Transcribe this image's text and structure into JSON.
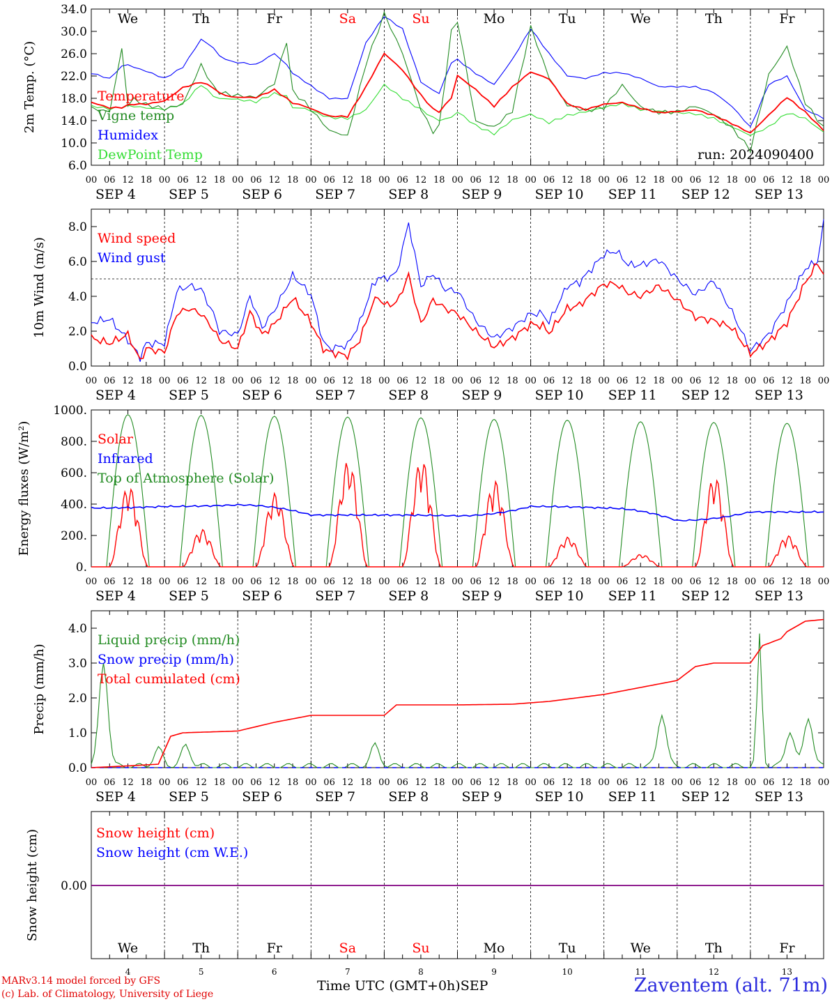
{
  "colors": {
    "red": "#ff0000",
    "green": "#228b22",
    "blue": "#0000ff",
    "lime": "#33dd33",
    "purple": "#800080",
    "black": "#000000"
  },
  "days": [
    "We",
    "Th",
    "Fr",
    "Sa",
    "Su",
    "Mo",
    "Tu",
    "We",
    "Th",
    "Fr"
  ],
  "weekend_idx": [
    3,
    4
  ],
  "dates": [
    "SEP  4",
    "SEP  5",
    "SEP  6",
    "SEP  7",
    "SEP  8",
    "SEP  9",
    "SEP 10",
    "SEP 11",
    "SEP 12",
    "SEP 13"
  ],
  "hour_ticks": [
    "00",
    "06",
    "12",
    "18"
  ],
  "bottom_day_numbers": [
    "4",
    "5",
    "6",
    "7",
    "8",
    "9",
    "10",
    "11",
    "12",
    "13"
  ],
  "footer": {
    "model": "MARv3.14 model forced by GFS",
    "credit": "(c) Lab. of Climatology, University of Liege",
    "axis_label": "Time UTC (GMT+0h)",
    "month": "SEP",
    "station": "Zaventem (alt. 71m)"
  },
  "chart_data": [
    {
      "type": "line",
      "ylabel": "2m Temp. (°C)",
      "ylim": [
        6,
        34
      ],
      "yticks": [
        "6.0",
        "10.0",
        "14.0",
        "18.0",
        "22.0",
        "26.0",
        "30.0",
        "34.0"
      ],
      "run_label": "run: 2024090400",
      "x_hours": [
        0,
        6,
        10,
        12,
        14,
        18,
        24,
        30,
        36,
        40,
        42,
        46,
        54,
        60,
        64,
        66,
        70,
        78,
        84,
        90,
        96,
        102,
        108,
        112,
        114,
        118,
        120,
        126,
        132,
        138,
        144,
        150,
        156,
        162,
        168,
        174,
        180,
        186,
        192,
        198,
        204,
        210,
        216,
        222,
        228,
        234,
        240
      ],
      "series": [
        {
          "name": "Temperature",
          "color": "red",
          "values": [
            17.3,
            16.3,
            16.4,
            16.8,
            17,
            17,
            17.6,
            20,
            21,
            20,
            19,
            18.3,
            18.2,
            19.6,
            18,
            17.2,
            16.6,
            14.8,
            14.7,
            20,
            26,
            23,
            18.5,
            16,
            15.5,
            18,
            22,
            19.5,
            16.5,
            20,
            22.7,
            21.5,
            17,
            16,
            17,
            17.3,
            16.3,
            15.5,
            15.7,
            16,
            15,
            13.5,
            11.8,
            15,
            18.2,
            15.5,
            12.2
          ]
        },
        {
          "name": "Vigne temp",
          "color": "green",
          "values": [
            16.5,
            15.8,
            27,
            17,
            18,
            17,
            16.2,
            17,
            24,
            20,
            19,
            18.5,
            18,
            20.5,
            28,
            19,
            17,
            12,
            11,
            24,
            33,
            26,
            16,
            12,
            13,
            30,
            32,
            14,
            13,
            16,
            31,
            22,
            17,
            16,
            16.5,
            20.5,
            16.5,
            15.5,
            15.5,
            16.5,
            15,
            12.5,
            8.5,
            22,
            27,
            17,
            12.5
          ]
        },
        {
          "name": "Humidex",
          "color": "blue",
          "values": [
            22.5,
            21.5,
            23.7,
            24,
            23.5,
            22.8,
            21.5,
            23.5,
            28.5,
            27,
            25.5,
            24.5,
            24,
            26,
            24,
            22.5,
            21,
            18,
            18,
            28,
            32.8,
            30.5,
            21,
            19.5,
            19,
            24.5,
            25,
            22.5,
            20.5,
            25,
            30.5,
            26,
            22,
            21.5,
            22.5,
            22.5,
            21.5,
            20,
            20,
            20,
            19,
            16.5,
            12.8,
            20.5,
            22,
            16,
            14.5
          ]
        },
        {
          "name": "DewPoint Temp",
          "color": "lime",
          "values": [
            16.5,
            16,
            16.3,
            16.5,
            16.5,
            16.2,
            16,
            17,
            20.5,
            18.5,
            18,
            18,
            17.5,
            19,
            18.5,
            16.5,
            16.3,
            14.7,
            14.5,
            16,
            20.5,
            18,
            16,
            14.5,
            14,
            14.5,
            15.5,
            13,
            11.5,
            14,
            15,
            13.5,
            14.8,
            15.5,
            16.3,
            17,
            16,
            15.7,
            15.5,
            15.3,
            14.5,
            13,
            11.5,
            13,
            15.5,
            14.5,
            12
          ]
        }
      ]
    },
    {
      "type": "line",
      "ylabel": "10m Wind (m/s)",
      "ylim": [
        0,
        9
      ],
      "yticks": [
        "0.0",
        "2.0",
        "4.0",
        "6.0",
        "8.0"
      ],
      "reference_line": 5,
      "x_hours": [
        0,
        6,
        12,
        16,
        18,
        24,
        28,
        32,
        36,
        40,
        42,
        48,
        52,
        56,
        60,
        66,
        72,
        76,
        78,
        84,
        88,
        92,
        94,
        96,
        100,
        104,
        108,
        112,
        116,
        120,
        126,
        132,
        138,
        144,
        148,
        150,
        156,
        160,
        168,
        172,
        176,
        180,
        184,
        186,
        192,
        198,
        204,
        210,
        216,
        222,
        228,
        234,
        238,
        240
      ],
      "series": [
        {
          "name": "Wind speed",
          "color": "red",
          "values": [
            1.6,
            1.3,
            1.8,
            0.3,
            1,
            0.8,
            3,
            3.3,
            3,
            2.1,
            1.5,
            1,
            3.1,
            1.8,
            2.4,
            3.9,
            2.5,
            1,
            0.8,
            0.6,
            1.5,
            3.5,
            4,
            3.5,
            3.6,
            5.2,
            2.4,
            3.8,
            3.3,
            3,
            2,
            1.1,
            1.6,
            2.4,
            2.3,
            1.9,
            3.3,
            3.5,
            4.7,
            4.7,
            4.2,
            4,
            4.4,
            4.6,
            3.8,
            2.8,
            2.6,
            2.2,
            0.7,
            1.4,
            2.5,
            4.8,
            5.9,
            5.3
          ]
        },
        {
          "name": "Wind gust",
          "color": "blue",
          "values": [
            2.5,
            2.7,
            1.5,
            0.5,
            1.3,
            1.3,
            4.3,
            4.6,
            4.4,
            3,
            2,
            1.8,
            4,
            2.2,
            3.2,
            5.2,
            4.1,
            1.4,
            1,
            1.2,
            2.5,
            4.5,
            5.1,
            5,
            5.3,
            8.2,
            4.6,
            5.3,
            4.4,
            4.3,
            2.6,
            1.6,
            2.2,
            3,
            3,
            2.5,
            4.6,
            4.8,
            6.4,
            6.6,
            5.8,
            5.8,
            6,
            6.1,
            5,
            4.1,
            4.9,
            3.1,
            0.9,
            1.8,
            3.6,
            5.6,
            6,
            8.2
          ]
        }
      ]
    },
    {
      "type": "line",
      "ylabel": "Energy fluxes (W/m²)",
      "ylim": [
        0,
        1000
      ],
      "yticks": [
        "0.",
        "200.",
        "400.",
        "600.",
        "800.",
        "1000."
      ],
      "series": [
        {
          "name": "Solar",
          "color": "red",
          "daily_peaks": [
            520,
            240,
            470,
            680,
            690,
            550,
            190,
            80,
            580,
            200
          ]
        },
        {
          "name": "Infrared",
          "color": "blue",
          "values_daily": [
            375,
            385,
            395,
            330,
            330,
            325,
            385,
            375,
            295,
            350
          ]
        },
        {
          "name": "Top of Atmosphere (Solar)",
          "color": "green",
          "daily_peaks": [
            970,
            965,
            960,
            955,
            950,
            940,
            935,
            925,
            920,
            915
          ]
        }
      ]
    },
    {
      "type": "line",
      "ylabel": "Precip (mm/h)",
      "ylim": [
        0,
        4.5
      ],
      "yticks": [
        "0.0",
        "1.0",
        "2.0",
        "3.0",
        "4.0"
      ],
      "x_hours": [
        0,
        12,
        22,
        26,
        30,
        48,
        60,
        72,
        84,
        96,
        100,
        108,
        120,
        138,
        150,
        168,
        180,
        192,
        198,
        204,
        210,
        216,
        220,
        226,
        228,
        234,
        240
      ],
      "series": [
        {
          "name": "Liquid precip (mm/h)",
          "color": "green",
          "peaks": [
            [
              4,
              3
            ],
            [
              22,
              0.5
            ],
            [
              31,
              0.6
            ],
            [
              93,
              0.6
            ],
            [
              187,
              1.5
            ],
            [
              219,
              3.75
            ],
            [
              229,
              1
            ],
            [
              235,
              1.4
            ]
          ]
        },
        {
          "name": "Snow precip (mm/h)",
          "color": "blue",
          "values": [
            0
          ]
        },
        {
          "name": "Total cumulated (cm)",
          "color": "red",
          "values": [
            0,
            0.05,
            0.1,
            0.9,
            1,
            1.05,
            1.3,
            1.5,
            1.5,
            1.5,
            1.8,
            1.8,
            1.8,
            1.82,
            1.9,
            2.1,
            2.3,
            2.5,
            2.9,
            3,
            3,
            3,
            3.5,
            3.7,
            3.9,
            4.2,
            4.25
          ]
        }
      ]
    },
    {
      "type": "line",
      "ylabel": "Snow height (cm)",
      "yticks": [
        "0.00"
      ],
      "series": [
        {
          "name": "Snow height (cm)",
          "color": "red",
          "values": [
            0
          ]
        },
        {
          "name": "Snow height (cm W.E.)",
          "color": "blue",
          "values": [
            0
          ]
        }
      ]
    }
  ]
}
